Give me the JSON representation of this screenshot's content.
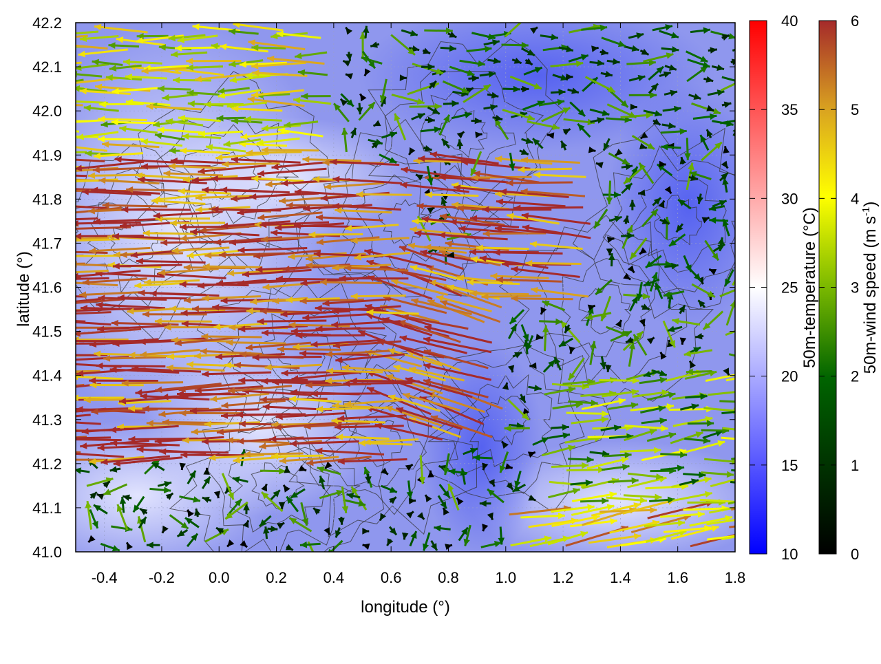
{
  "chart_data": {
    "type": "scatter",
    "subtype": "wind-vector field over temperature map",
    "xlabel": "longitude (°)",
    "ylabel": "latitude (°)",
    "xlim": [
      -0.5,
      1.8
    ],
    "ylim": [
      41.0,
      42.2
    ],
    "x_ticks": [
      "-0.4",
      "-0.2",
      "0.0",
      "0.2",
      "0.4",
      "0.6",
      "0.8",
      "1.0",
      "1.2",
      "1.4",
      "1.6",
      "1.8"
    ],
    "x_tick_values": [
      -0.4,
      -0.2,
      0.0,
      0.2,
      0.4,
      0.6,
      0.8,
      1.0,
      1.2,
      1.4,
      1.6,
      1.8
    ],
    "y_ticks": [
      "41.0",
      "41.1",
      "41.2",
      "41.3",
      "41.4",
      "41.5",
      "41.6",
      "41.7",
      "41.8",
      "41.9",
      "42.0",
      "42.1",
      "42.2"
    ],
    "y_tick_values": [
      41.0,
      41.1,
      41.2,
      41.3,
      41.4,
      41.5,
      41.6,
      41.7,
      41.8,
      41.9,
      42.0,
      42.1,
      42.2
    ],
    "grid": true,
    "temperature_colorbar": {
      "label": "50m-temperature (°C)",
      "range": [
        10,
        40
      ],
      "ticks": [
        "10",
        "15",
        "20",
        "25",
        "30",
        "35",
        "40"
      ],
      "tick_values": [
        10,
        15,
        20,
        25,
        30,
        35,
        40
      ],
      "colors": [
        "#0000ff",
        "#ffffff",
        "#ff0000"
      ]
    },
    "wind_colorbar": {
      "label": "50m-wind speed (m s-1)",
      "label_main": "50m-wind speed (m s",
      "label_sup": "-1",
      "label_end": ")",
      "range": [
        0,
        6
      ],
      "ticks": [
        "0",
        "1",
        "2",
        "3",
        "4",
        "5",
        "6"
      ],
      "tick_values": [
        0,
        1,
        2,
        3,
        4,
        5,
        6
      ],
      "colors": [
        "#000000",
        "#006400",
        "#ffff00",
        "#daa520",
        "#a52a2a"
      ]
    },
    "background_temperature_c": 17,
    "vector_regions": [
      {
        "lon": [
          -0.5,
          0.7
        ],
        "lat": [
          41.2,
          41.9
        ],
        "u": -6,
        "v": -0.1,
        "speed": 6
      },
      {
        "lon": [
          0.5,
          1.0
        ],
        "lat": [
          41.25,
          41.65
        ],
        "u": -5,
        "v": 1.5,
        "speed": 6
      },
      {
        "lon": [
          0.85,
          1.3
        ],
        "lat": [
          41.55,
          41.9
        ],
        "u": -5.5,
        "v": 0.4,
        "speed": 6
      },
      {
        "lon": [
          1.0,
          1.8
        ],
        "lat": [
          41.0,
          41.1
        ],
        "u": 4,
        "v": 0.6,
        "speed": 5
      },
      {
        "lon": [
          -0.5,
          0.4
        ],
        "lat": [
          41.9,
          42.2
        ],
        "u": -3.5,
        "v": 0,
        "speed": 4
      },
      {
        "lon": [
          0.6,
          1.8
        ],
        "lat": [
          41.95,
          42.2
        ],
        "u": 1,
        "v": 0,
        "speed": 2
      },
      {
        "lon": [
          1.1,
          1.8
        ],
        "lat": [
          41.1,
          41.4
        ],
        "u": 2.5,
        "v": 0.2,
        "speed": 3
      }
    ]
  }
}
